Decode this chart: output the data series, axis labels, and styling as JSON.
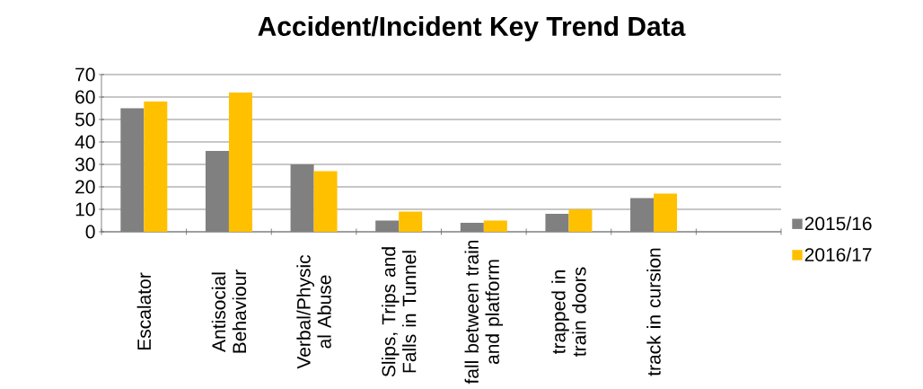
{
  "chart_data": {
    "type": "bar",
    "title": "Accident/Incident Key Trend Data",
    "categories": [
      "Escalator",
      "Antisocial Behaviour",
      "Verbal/Physic al Abuse",
      "Slips, Trips and Falls in Tunnel",
      "fall between train and platform",
      "trapped in train doors",
      "track in cursion",
      null
    ],
    "series": [
      {
        "name": "2015/16",
        "color": "#808080",
        "values": [
          55,
          36,
          30,
          5,
          4,
          8,
          15,
          null
        ]
      },
      {
        "name": "2016/17",
        "color": "#ffc000",
        "values": [
          58,
          62,
          27,
          9,
          5,
          10,
          17,
          null
        ]
      }
    ],
    "ylim": [
      0,
      70
    ],
    "yticks": [
      0,
      10,
      20,
      30,
      40,
      50,
      60,
      70
    ],
    "grid": "y",
    "legend": "right"
  }
}
